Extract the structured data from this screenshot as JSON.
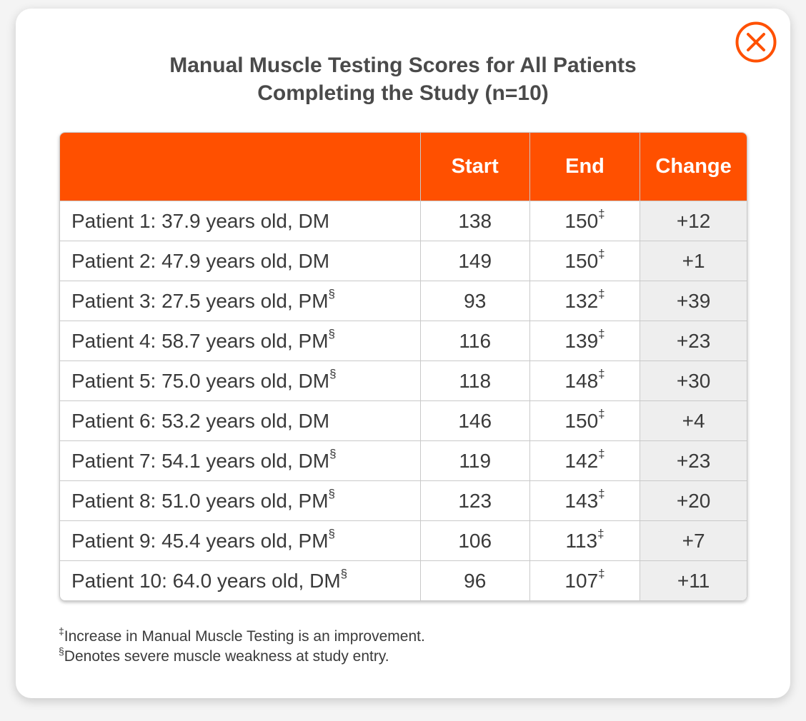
{
  "title": {
    "line1": "Manual Muscle Testing Scores for All Patients",
    "line2": "Completing the Study (n=10)"
  },
  "close_icon": "close-circle-icon",
  "accent_color": "#ff5000",
  "table": {
    "headers": [
      "",
      "Start",
      "End",
      "Change"
    ],
    "end_marker": "‡",
    "severe_marker": "§",
    "rows": [
      {
        "label": "Patient 1: 37.9 years old, DM",
        "severe": "",
        "start": "138",
        "end": "150",
        "change": "+12"
      },
      {
        "label": "Patient 2: 47.9 years old, DM",
        "severe": "",
        "start": "149",
        "end": "150",
        "change": "+1"
      },
      {
        "label": "Patient 3: 27.5 years old, PM",
        "severe": "§",
        "start": "93",
        "end": "132",
        "change": "+39"
      },
      {
        "label": "Patient 4: 58.7 years old, PM",
        "severe": "§",
        "start": "116",
        "end": "139",
        "change": "+23"
      },
      {
        "label": "Patient 5: 75.0 years old, DM",
        "severe": "§",
        "start": "118",
        "end": "148",
        "change": "+30"
      },
      {
        "label": "Patient 6: 53.2 years old, DM",
        "severe": "",
        "start": "146",
        "end": "150",
        "change": "+4"
      },
      {
        "label": "Patient 7: 54.1 years old, DM",
        "severe": "§",
        "start": "119",
        "end": "142",
        "change": "+23"
      },
      {
        "label": "Patient 8: 51.0 years old, PM",
        "severe": "§",
        "start": "123",
        "end": "143",
        "change": "+20"
      },
      {
        "label": "Patient 9: 45.4 years old, PM",
        "severe": "§",
        "start": "106",
        "end": "113",
        "change": "+7"
      },
      {
        "label": "Patient 10: 64.0 years old, DM",
        "severe": "§",
        "start": "96",
        "end": "107",
        "change": "+11"
      }
    ]
  },
  "footnotes": [
    {
      "marker": "‡",
      "text": "Increase in Manual Muscle Testing is an improvement."
    },
    {
      "marker": "§",
      "text": "Denotes severe muscle weakness at study entry."
    }
  ]
}
